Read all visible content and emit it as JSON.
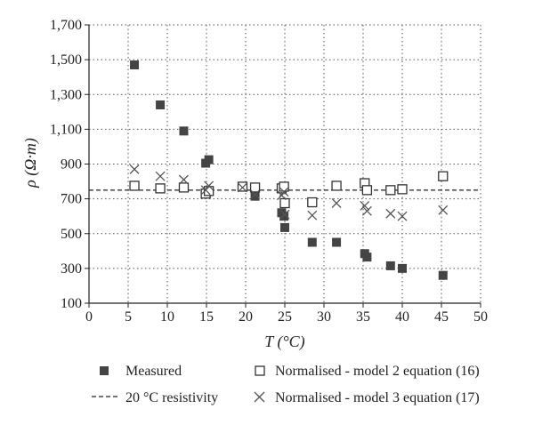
{
  "chart_data": {
    "type": "scatter",
    "xlabel": "T (°C)",
    "ylabel": "ρ (Ω·m)",
    "xlim": [
      0,
      50
    ],
    "ylim": [
      100,
      1700
    ],
    "xticks": [
      0,
      5,
      10,
      15,
      20,
      25,
      30,
      35,
      40,
      45,
      50
    ],
    "xtick_labels": [
      "0",
      "5",
      "10",
      "15",
      "20",
      "25",
      "30",
      "35",
      "40",
      "45",
      "50"
    ],
    "yticks": [
      100,
      300,
      500,
      700,
      900,
      1100,
      1300,
      1500,
      1700
    ],
    "ytick_labels": [
      "100",
      "300",
      "500",
      "700",
      "900",
      "1,100",
      "1,300",
      "1,500",
      "1,700"
    ],
    "grid": "dotted",
    "legend_position": "bottom",
    "reference_line": {
      "name": "20 °C resistivity",
      "y": 750,
      "style": "dashed"
    },
    "series": [
      {
        "name": "Measured",
        "marker": "filled-square",
        "color": "#444444",
        "points": [
          [
            5.8,
            1470
          ],
          [
            9.1,
            1240
          ],
          [
            12.1,
            1090
          ],
          [
            14.9,
            905
          ],
          [
            15.3,
            925
          ],
          [
            19.6,
            770
          ],
          [
            21.2,
            715
          ],
          [
            24.6,
            620
          ],
          [
            24.9,
            600
          ],
          [
            25.0,
            535
          ],
          [
            28.5,
            450
          ],
          [
            31.6,
            450
          ],
          [
            35.2,
            385
          ],
          [
            35.5,
            365
          ],
          [
            38.5,
            315
          ],
          [
            40.0,
            300
          ],
          [
            45.2,
            260
          ]
        ]
      },
      {
        "name": "Normalised - model 2 equation (16)",
        "marker": "open-square",
        "color": "#333333",
        "points": [
          [
            5.8,
            775
          ],
          [
            9.1,
            760
          ],
          [
            12.1,
            765
          ],
          [
            14.9,
            730
          ],
          [
            15.3,
            745
          ],
          [
            19.6,
            770
          ],
          [
            21.2,
            765
          ],
          [
            24.6,
            760
          ],
          [
            24.9,
            770
          ],
          [
            25.0,
            675
          ],
          [
            28.5,
            680
          ],
          [
            31.6,
            775
          ],
          [
            35.2,
            790
          ],
          [
            35.5,
            750
          ],
          [
            38.5,
            750
          ],
          [
            40.0,
            755
          ],
          [
            45.2,
            830
          ]
        ]
      },
      {
        "name": "Normalised - model 3 equation (17)",
        "marker": "x",
        "color": "#555555",
        "points": [
          [
            5.8,
            870
          ],
          [
            9.1,
            830
          ],
          [
            12.1,
            810
          ],
          [
            14.9,
            750
          ],
          [
            15.3,
            775
          ],
          [
            19.6,
            765
          ],
          [
            21.2,
            725
          ],
          [
            24.6,
            720
          ],
          [
            24.9,
            740
          ],
          [
            25.0,
            610
          ],
          [
            28.5,
            605
          ],
          [
            31.6,
            675
          ],
          [
            35.2,
            660
          ],
          [
            35.5,
            630
          ],
          [
            38.5,
            615
          ],
          [
            40.0,
            600
          ],
          [
            45.2,
            635
          ]
        ]
      }
    ]
  }
}
